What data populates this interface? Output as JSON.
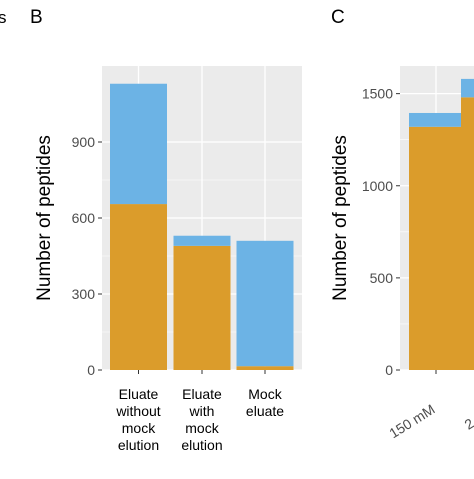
{
  "fragment_text": "s",
  "colors": {
    "bottom": "#DB9C2B",
    "top": "#6CB3E5",
    "panel_bg": "#EBEBEB",
    "grid": "#FFFFFF"
  },
  "chart_data": [
    {
      "panel_label": "B",
      "type": "bar",
      "stacked": true,
      "ylabel": "Number of peptides",
      "ylim": [
        0,
        1200
      ],
      "yticks": [
        0,
        300,
        600,
        900
      ],
      "categories": [
        [
          "Eluate",
          "without",
          "mock",
          "elution"
        ],
        [
          "Eluate",
          "with",
          "mock",
          "elution"
        ],
        [
          "Mock",
          "eluate"
        ]
      ],
      "series": [
        {
          "color": "#DB9C2B",
          "values": [
            655,
            490,
            15
          ]
        },
        {
          "color": "#6CB3E5",
          "values": [
            475,
            40,
            495
          ]
        }
      ],
      "grid": true,
      "legend": "none"
    },
    {
      "panel_label": "C",
      "type": "bar",
      "stacked": true,
      "ylabel": "Number of peptides",
      "ylim": [
        0,
        1650
      ],
      "yticks": [
        0,
        500,
        1000,
        1500
      ],
      "categories": [
        "150 mM",
        "2"
      ],
      "series": [
        {
          "color": "#DB9C2B",
          "values": [
            1320,
            1480
          ]
        },
        {
          "color": "#6CB3E5",
          "values": [
            75,
            100
          ]
        }
      ],
      "grid": true,
      "legend": "none"
    }
  ]
}
